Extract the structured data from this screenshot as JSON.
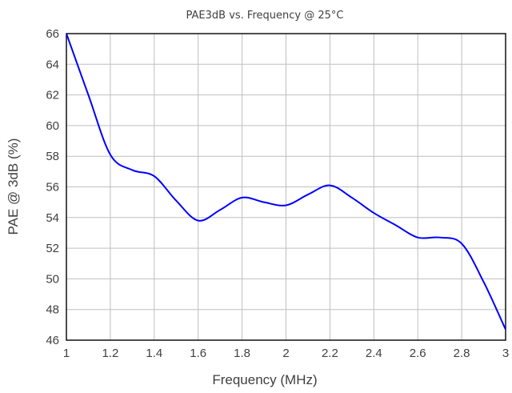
{
  "chart_data": {
    "type": "line",
    "title": "PAE3dB vs. Frequency @ 25°C",
    "xlabel": "Frequency (MHz)",
    "ylabel": "PAE @ 3dB (%)",
    "xlim": [
      1,
      3
    ],
    "ylim": [
      46,
      66
    ],
    "xticks": [
      "1",
      "1.2",
      "1.4",
      "1.6",
      "1.8",
      "2",
      "2.2",
      "2.4",
      "2.6",
      "2.8",
      "3"
    ],
    "yticks": [
      "46",
      "48",
      "50",
      "52",
      "54",
      "56",
      "58",
      "60",
      "62",
      "64",
      "66"
    ],
    "grid": true,
    "legend": "none",
    "series": [
      {
        "color": "#0000ff",
        "x": [
          1.0,
          1.1,
          1.2,
          1.3,
          1.4,
          1.5,
          1.6,
          1.7,
          1.8,
          1.9,
          2.0,
          2.1,
          2.2,
          2.3,
          2.4,
          2.5,
          2.6,
          2.7,
          2.8,
          2.9,
          3.0
        ],
        "y": [
          66.0,
          62.0,
          58.1,
          57.1,
          56.7,
          55.1,
          53.8,
          54.5,
          55.3,
          55.0,
          54.8,
          55.5,
          56.1,
          55.3,
          54.3,
          53.5,
          52.7,
          52.7,
          52.3,
          49.8,
          46.7
        ]
      }
    ]
  }
}
